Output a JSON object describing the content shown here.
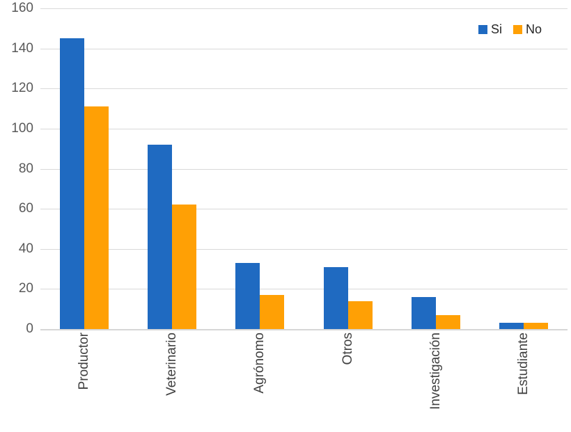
{
  "chart_data": {
    "type": "bar",
    "title": "",
    "xlabel": "",
    "ylabel": "",
    "categories": [
      "Productor",
      "Veterinario",
      "Agrónomo",
      "Otros",
      "Investigación",
      "Estudiante"
    ],
    "series": [
      {
        "name": "Si",
        "color": "#1f6ac1",
        "values": [
          145,
          92,
          33,
          31,
          16,
          3
        ]
      },
      {
        "name": "No",
        "color": "#ffa005",
        "values": [
          111,
          62,
          17,
          14,
          7,
          3
        ]
      }
    ],
    "ylim": [
      0,
      160
    ],
    "ytick_step": 20,
    "yticks": [
      0,
      20,
      40,
      60,
      80,
      100,
      120,
      140,
      160
    ],
    "grid": true,
    "gridline_color": "#d9d9d9",
    "tick_label_color": "#595959",
    "category_label_color": "#404040",
    "legend_position": "top-right",
    "legend": [
      "Si",
      "No"
    ]
  }
}
